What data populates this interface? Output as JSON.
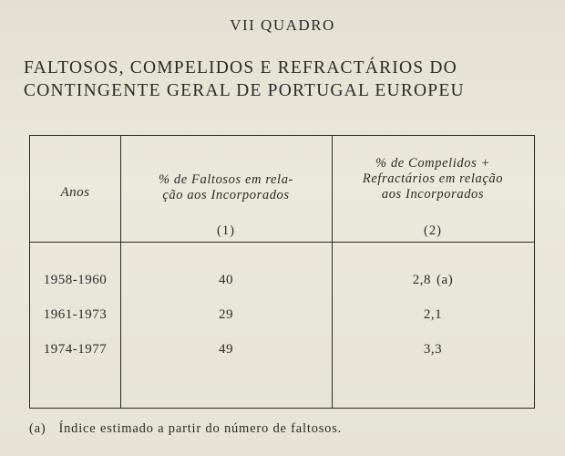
{
  "header": {
    "quadro": "VII QUADRO",
    "title_line1": "FALTOSOS, COMPELIDOS E REFRACTÁRIOS DO",
    "title_line2": "CONTINGENTE GERAL DE PORTUGAL EUROPEU"
  },
  "table": {
    "col0_header": "Anos",
    "col1_header_line1": "% de Faltosos em rela-",
    "col1_header_line2": "ção aos Incorporados",
    "col1_number": "(1)",
    "col2_header_line1": "% de Compelidos +",
    "col2_header_line2": "Refractários em relação",
    "col2_header_line3": "aos Incorporados",
    "col2_number": "(2)",
    "rows": [
      {
        "years": "1958-1960",
        "faltosos": "40",
        "compelidos": "2,8",
        "note": "(a)"
      },
      {
        "years": "1961-1973",
        "faltosos": "29",
        "compelidos": "2,1",
        "note": ""
      },
      {
        "years": "1974-1977",
        "faltosos": "49",
        "compelidos": "3,3",
        "note": ""
      }
    ]
  },
  "footnote": {
    "mark": "(a)",
    "text": "Índice estimado a partir do número de faltosos."
  }
}
